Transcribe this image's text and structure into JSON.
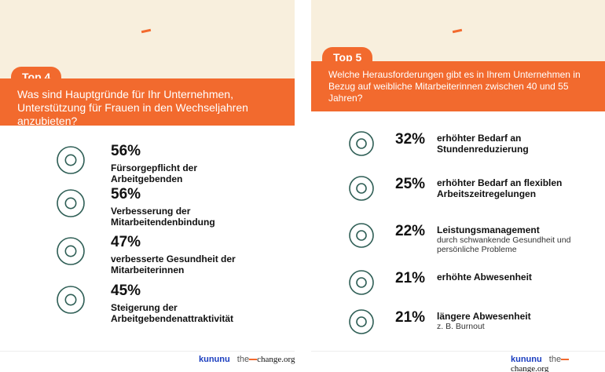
{
  "panels": [
    {
      "badge": "Top 4",
      "question": "Was sind Hauptgründe für Ihr Unternehmen, Unterstützung für Frauen in den Wechseljahren anzubieten?",
      "items": [
        {
          "percent": "56%",
          "title": "Fürsorgepflicht der Arbeitgebenden"
        },
        {
          "percent": "56%",
          "title": "Verbesserung der Mitarbeitendenbindung"
        },
        {
          "percent": "47%",
          "title": "verbesserte Gesundheit der Mitarbeiterinnen"
        },
        {
          "percent": "45%",
          "title": "Steigerung der Arbeitgebendenattraktivität"
        }
      ]
    },
    {
      "badge": "Top 5",
      "question": "Welche Herausforderungen gibt es in Ihrem Unternehmen in Bezug auf weibliche Mitarbeiterinnen zwischen 40 und 55 Jahren?",
      "items": [
        {
          "percent": "32%",
          "title": "erhöhter Bedarf an Stundenreduzierung"
        },
        {
          "percent": "25%",
          "title": "erhöhter Bedarf an flexiblen Arbeitszeitregelungen"
        },
        {
          "percent": "22%",
          "title": "Leistungsmanagement",
          "detail": "durch schwankende Gesundheit und persönliche Probleme"
        },
        {
          "percent": "21%",
          "title": "erhöhte Abwesenheit"
        },
        {
          "percent": "21%",
          "title": "längere Abwesenheit",
          "detail": "z. B. Burnout"
        }
      ]
    }
  ],
  "footer": {
    "brand": "kununu",
    "partner_prefix": "the",
    "partner_name": "change.org"
  }
}
